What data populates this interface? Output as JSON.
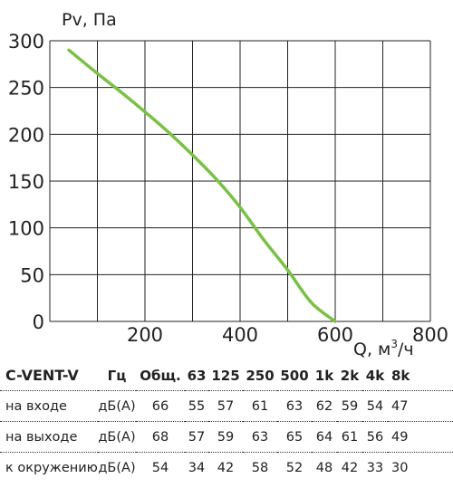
{
  "chart_data": {
    "type": "line",
    "ylabel": "Pv, Па",
    "xlabel_prefix": "Q, м",
    "xlabel_sup": "3",
    "xlabel_suffix": "/ч",
    "xlim": [
      0,
      800
    ],
    "ylim": [
      0,
      300
    ],
    "x_ticks": [
      "200",
      "400",
      "600",
      "800"
    ],
    "y_ticks": [
      "0",
      "50",
      "100",
      "150",
      "200",
      "250",
      "300"
    ],
    "grid": true,
    "series": [
      {
        "color": "#7ac143",
        "x": [
          40,
          100,
          150,
          200,
          250,
          300,
          350,
          400,
          450,
          500,
          550,
          600
        ],
        "y": [
          290,
          265,
          245,
          224,
          202,
          178,
          152,
          122,
          87,
          55,
          20,
          0
        ]
      }
    ]
  },
  "table": {
    "model": "C-VENT-V",
    "headers": [
      "Гц",
      "Общ.",
      "63",
      "125",
      "250",
      "500",
      "1k",
      "2k",
      "4k",
      "8k"
    ],
    "rows": [
      {
        "label": "на входе",
        "unit": "дБ(А)",
        "values": [
          "66",
          "55",
          "57",
          "61",
          "63",
          "62",
          "59",
          "54",
          "47"
        ]
      },
      {
        "label": "на выходе",
        "unit": "дБ(А)",
        "values": [
          "68",
          "57",
          "59",
          "63",
          "65",
          "64",
          "61",
          "56",
          "49"
        ]
      },
      {
        "label": "к окружению",
        "unit": "дБ(А)",
        "values": [
          "54",
          "34",
          "42",
          "58",
          "52",
          "48",
          "42",
          "33",
          "30"
        ]
      }
    ]
  }
}
